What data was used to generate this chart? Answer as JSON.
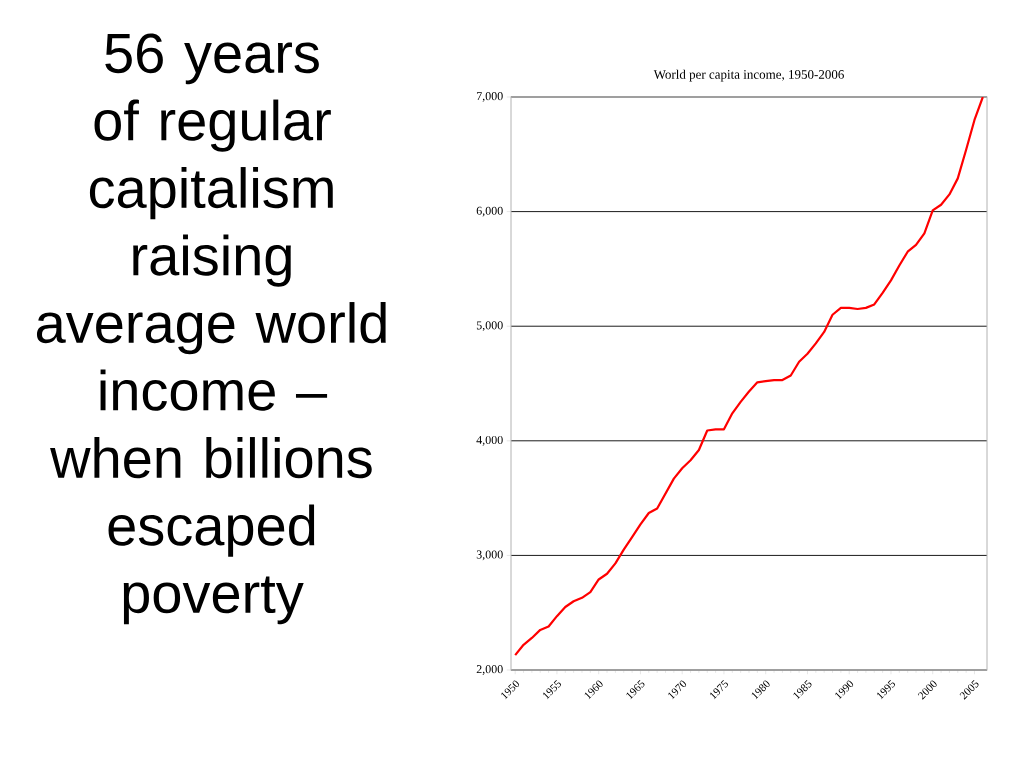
{
  "chart_data": {
    "type": "line",
    "title": "World per capita income, 1950-2006",
    "annotations": [
      "56 years of regular capitalism raising average world income – when billions escaped poverty"
    ],
    "x": [
      1950,
      1951,
      1952,
      1953,
      1954,
      1955,
      1956,
      1957,
      1958,
      1959,
      1960,
      1961,
      1962,
      1963,
      1964,
      1965,
      1966,
      1967,
      1968,
      1969,
      1970,
      1971,
      1972,
      1973,
      1974,
      1975,
      1976,
      1977,
      1978,
      1979,
      1980,
      1981,
      1982,
      1983,
      1984,
      1985,
      1986,
      1987,
      1988,
      1989,
      1990,
      1991,
      1992,
      1993,
      1994,
      1995,
      1996,
      1997,
      1998,
      1999,
      2000,
      2001,
      2002,
      2003,
      2004,
      2005,
      2006
    ],
    "series": [
      {
        "color": "#ff0000",
        "values": [
          2130,
          2220,
          2280,
          2350,
          2380,
          2470,
          2550,
          2600,
          2630,
          2680,
          2790,
          2840,
          2930,
          3050,
          3160,
          3270,
          3370,
          3410,
          3540,
          3670,
          3760,
          3830,
          3920,
          4090,
          4100,
          4100,
          4240,
          4340,
          4430,
          4510,
          4520,
          4530,
          4530,
          4570,
          4690,
          4760,
          4850,
          4950,
          5100,
          5160,
          5160,
          5150,
          5160,
          5190,
          5290,
          5400,
          5530,
          5650,
          5710,
          5810,
          6010,
          6060,
          6150,
          6290,
          6540,
          6800,
          7000
        ]
      }
    ],
    "xlim": [
      1949.5,
      2006.5
    ],
    "ylim": [
      2000,
      7000
    ],
    "xticks": [
      1950,
      1955,
      1960,
      1965,
      1970,
      1975,
      1980,
      1985,
      1990,
      1995,
      2000,
      2005
    ],
    "yticks": [
      {
        "value": 2000,
        "label": "2,000"
      },
      {
        "value": 3000,
        "label": "3,000"
      },
      {
        "value": 4000,
        "label": "4,000"
      },
      {
        "value": 5000,
        "label": "5,000"
      },
      {
        "value": 6000,
        "label": "6,000"
      },
      {
        "value": 7000,
        "label": "7,000"
      }
    ],
    "grid": "y",
    "marker": "none",
    "line_style": "solid"
  }
}
